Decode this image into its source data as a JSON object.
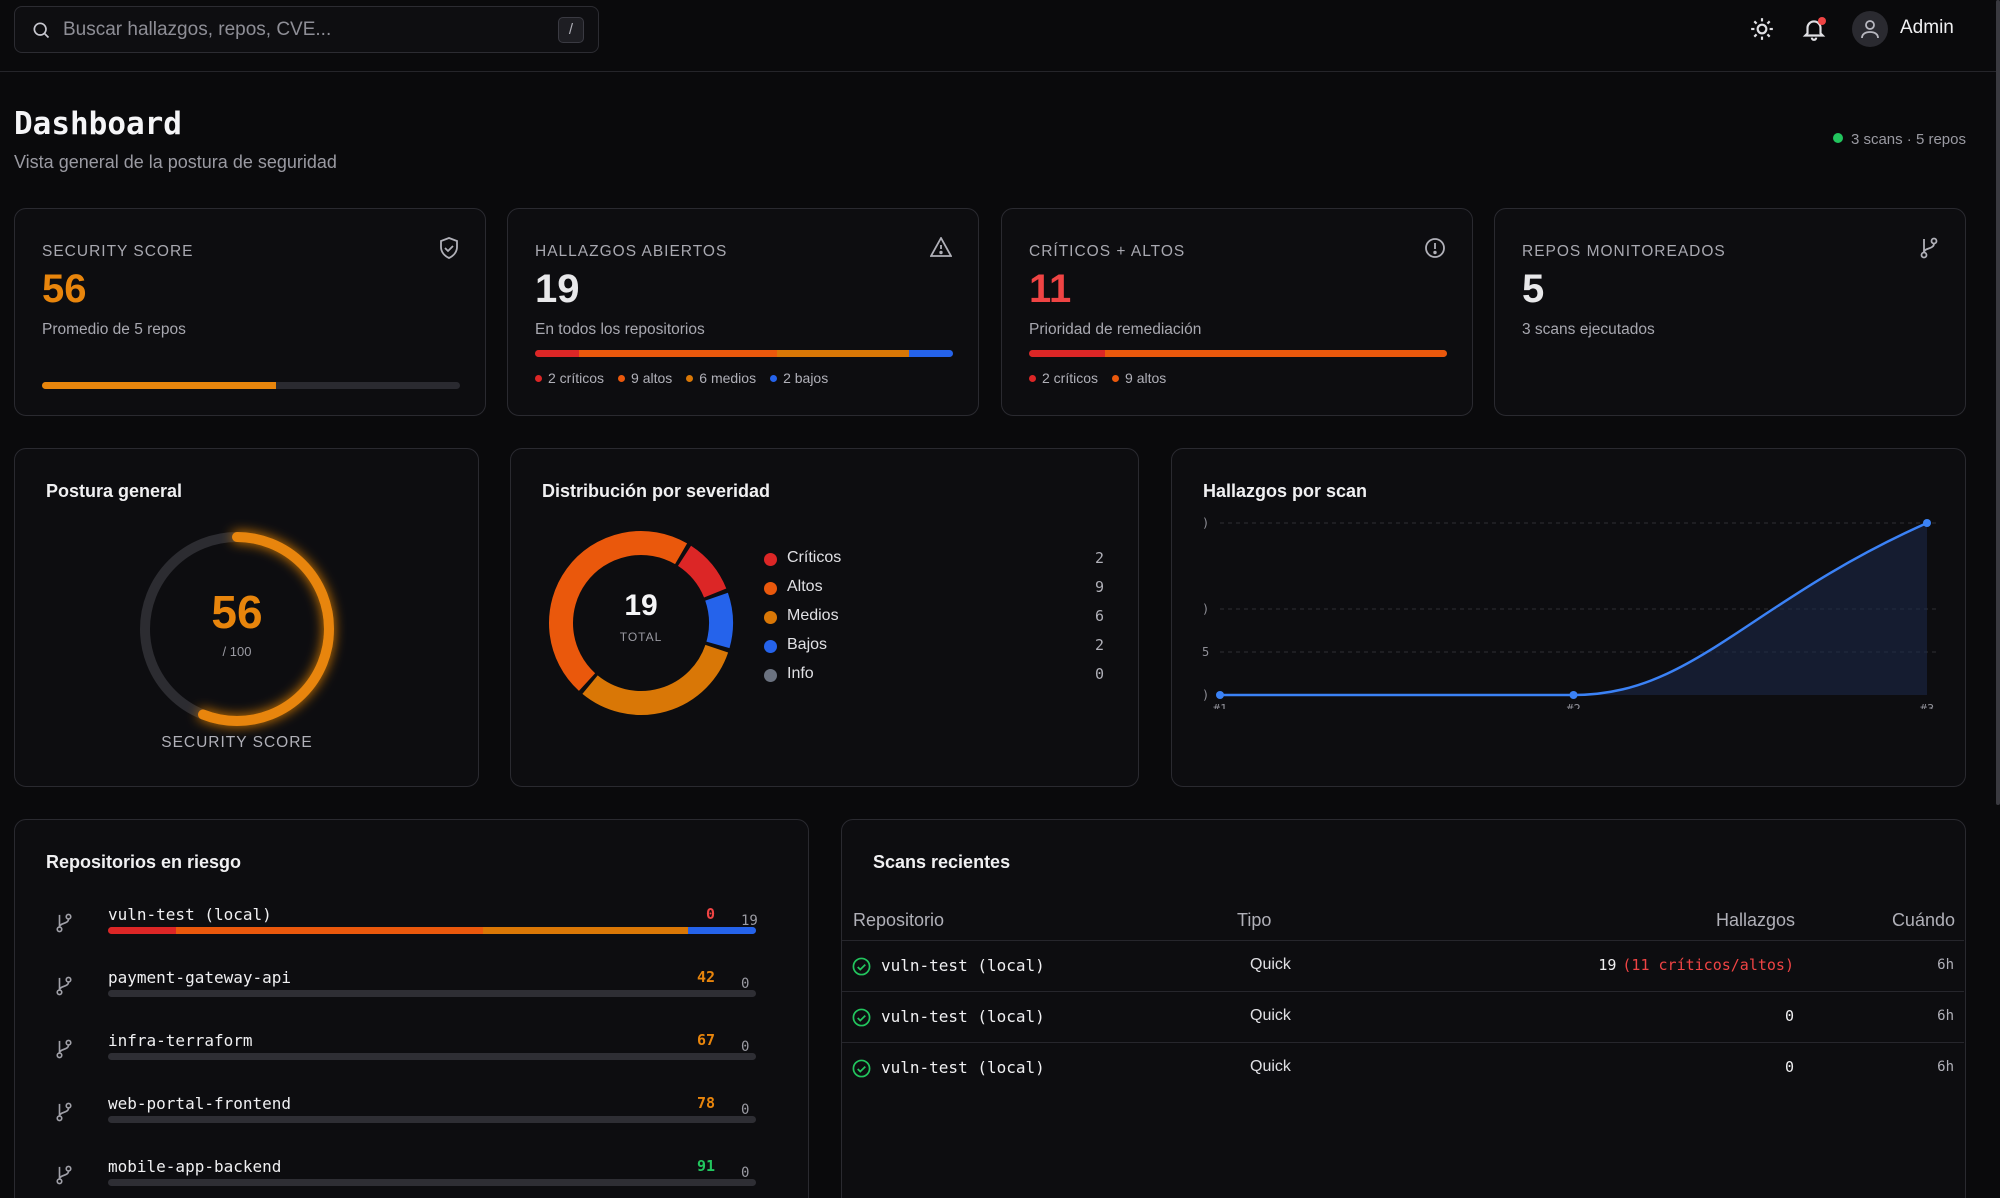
{
  "topbar": {
    "search_placeholder": "Buscar hallazgos, repos, CVE...",
    "search_shortcut": "/",
    "user_name": "Admin"
  },
  "header": {
    "title": "Dashboard",
    "subtitle": "Vista general de la postura de seguridad",
    "status": "3 scans · 5 repos",
    "status_color": "#22c55e"
  },
  "colors": {
    "critical": "#dc2626",
    "high": "#ea580c",
    "medium": "#d97706",
    "low": "#2563eb",
    "info": "#6b7280",
    "good": "#16a34a"
  },
  "stats": [
    {
      "label": "SECURITY SCORE",
      "value": "56",
      "desc": "Promedio de 5 repos",
      "icon": "shield-check-icon",
      "value_color": "#e8850c",
      "progress": 0.56
    },
    {
      "label": "HALLAZGOS ABIERTOS",
      "value": "19",
      "desc": "En todos los repositorios",
      "icon": "warning-triangle-icon",
      "value_color": "#f5f5f7",
      "legend": [
        "2 críticos",
        "9 altos",
        "6 medios",
        "2 bajos"
      ]
    },
    {
      "label": "CRÍTICOS + ALTOS",
      "value": "11",
      "desc": "Prioridad de remediación",
      "icon": "alert-circle-icon",
      "value_color": "#ef4444",
      "legend": [
        "2 críticos",
        "9 altos"
      ]
    },
    {
      "label": "REPOS MONITOREADOS",
      "value": "5",
      "desc": "3 scans ejecutados",
      "icon": "git-branch-icon",
      "value_color": "#f5f5f7"
    }
  ],
  "posture": {
    "title": "Postura general",
    "score": "56",
    "max": "/ 100",
    "label": "SECURITY SCORE",
    "fraction": 0.56
  },
  "severity": {
    "title": "Distribución por severidad",
    "total": "19",
    "total_label": "TOTAL",
    "items": [
      {
        "name": "Críticos",
        "count": "2",
        "color": "#dc2626"
      },
      {
        "name": "Altos",
        "count": "9",
        "color": "#ea580c"
      },
      {
        "name": "Medios",
        "count": "6",
        "color": "#d97706"
      },
      {
        "name": "Bajos",
        "count": "2",
        "color": "#2563eb"
      },
      {
        "name": "Info",
        "count": "0",
        "color": "#6b7280"
      }
    ]
  },
  "chart_data": {
    "type": "area",
    "title": "Hallazgos por scan",
    "categories": [
      "#1",
      "#2",
      "#3"
    ],
    "series": [
      {
        "values": [
          0,
          0,
          19
        ]
      }
    ],
    "ytick_labels": [
      ")",
      ")",
      "5",
      ")"
    ],
    "grid": true
  },
  "repos": {
    "title": "Repositorios en riesgo",
    "items": [
      {
        "name": "vuln-test (local)",
        "score": "0",
        "count": "19",
        "score_color": "#ef4444",
        "segments": [
          2,
          9,
          6,
          2
        ]
      },
      {
        "name": "payment-gateway-api",
        "score": "42",
        "count": "0",
        "score_color": "#e8850c"
      },
      {
        "name": "infra-terraform",
        "score": "67",
        "count": "0",
        "score_color": "#e8850c"
      },
      {
        "name": "web-portal-frontend",
        "score": "78",
        "count": "0",
        "score_color": "#e8850c"
      },
      {
        "name": "mobile-app-backend",
        "score": "91",
        "count": "0",
        "score_color": "#22c55e"
      }
    ]
  },
  "scans": {
    "title": "Scans recientes",
    "columns": [
      "Repositorio",
      "Tipo",
      "Hallazgos",
      "Cuándo"
    ],
    "rows": [
      {
        "repo": "vuln-test (local)",
        "type": "Quick",
        "findings": "19",
        "critical": "(11 críticos/altos)",
        "when": "6h"
      },
      {
        "repo": "vuln-test (local)",
        "type": "Quick",
        "findings": "0",
        "critical": "",
        "when": "6h"
      },
      {
        "repo": "vuln-test (local)",
        "type": "Quick",
        "findings": "0",
        "critical": "",
        "when": "6h"
      }
    ]
  }
}
